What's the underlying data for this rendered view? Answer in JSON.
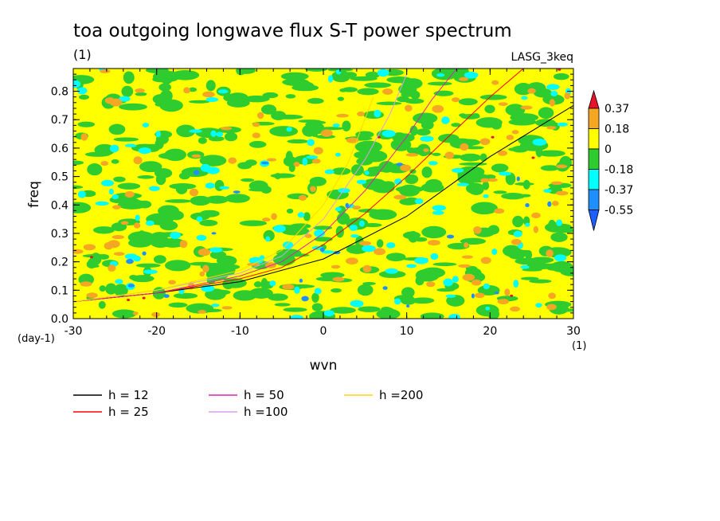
{
  "chart_data": {
    "type": "heatmap",
    "title": "toa outgoing longwave flux S-T power spectrum",
    "subtitle": "(1)",
    "tag": "LASG_3keq",
    "xlabel": "wvn",
    "xunit": "(1)",
    "ylabel": "freq",
    "yunit": "(day-1)",
    "xlim": [
      -30,
      30
    ],
    "ylim": [
      0.0,
      0.88
    ],
    "xticks": [
      "-30",
      "-20",
      "-10",
      "0",
      "10",
      "20",
      "30"
    ],
    "yticks": [
      "0.0",
      "0.1",
      "0.2",
      "0.3",
      "0.4",
      "0.5",
      "0.6",
      "0.7",
      "0.8"
    ],
    "colorbar": {
      "labels": [
        "0.37",
        "0.18",
        "0",
        "-0.18",
        "-0.37",
        "-0.55"
      ],
      "colors": [
        "#e8132a",
        "#f5a623",
        "#ffff00",
        "#2ecc2e",
        "#00ffff",
        "#1f8fff",
        "#1f5fff"
      ]
    },
    "field_note": "noisy contour field of normalized power, mostly yellow and green with scattered orange, cyan and blue patches",
    "series": [
      {
        "name": "h = 12",
        "color": "#000000",
        "x": [
          -30,
          -20,
          -10,
          0,
          10,
          20,
          30
        ],
        "y": [
          0.06,
          0.09,
          0.13,
          0.21,
          0.36,
          0.57,
          0.75
        ]
      },
      {
        "name": "h = 25",
        "color": "#ff0000",
        "x": [
          -30,
          -20,
          -10,
          -5,
          0,
          5,
          10,
          15,
          20,
          24
        ],
        "y": [
          0.06,
          0.09,
          0.14,
          0.18,
          0.26,
          0.37,
          0.5,
          0.64,
          0.78,
          0.88
        ]
      },
      {
        "name": "h = 50",
        "color": "#e020b0",
        "x": [
          -30,
          -20,
          -10,
          -5,
          0,
          5,
          10,
          13,
          16
        ],
        "y": [
          0.06,
          0.09,
          0.15,
          0.2,
          0.3,
          0.45,
          0.64,
          0.77,
          0.88
        ]
      },
      {
        "name": "h =100",
        "color": "#d8a0e8",
        "x": [
          -30,
          -20,
          -10,
          -5,
          0,
          5,
          8,
          10
        ],
        "y": [
          0.06,
          0.1,
          0.16,
          0.22,
          0.35,
          0.56,
          0.72,
          0.86
        ]
      },
      {
        "name": "h =200",
        "color": "#ffd700",
        "x": [
          -30,
          -20,
          -10,
          -5,
          0,
          3,
          6
        ],
        "y": [
          0.06,
          0.1,
          0.17,
          0.24,
          0.4,
          0.55,
          0.78
        ]
      }
    ]
  }
}
